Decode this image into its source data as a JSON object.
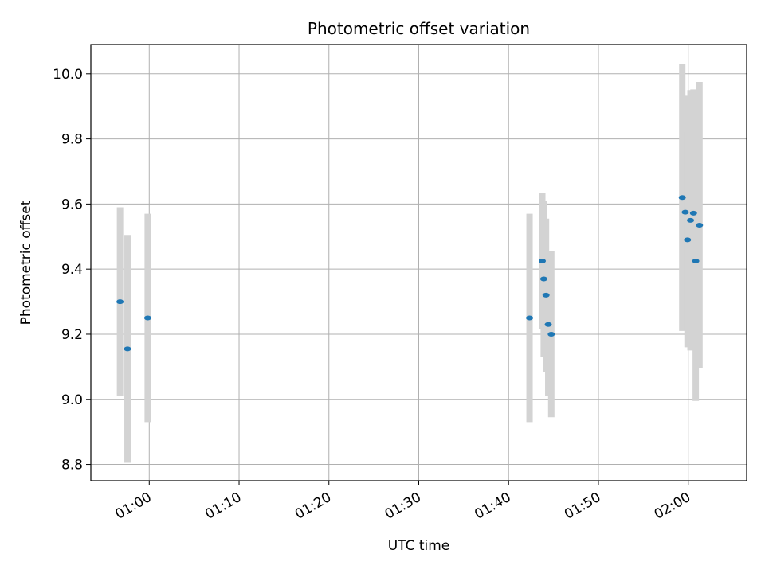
{
  "chart_data": {
    "type": "scatter",
    "title": "Photometric offset variation",
    "xlabel": "UTC time",
    "ylabel": "Photometric offset",
    "x_ticks": [
      "01:00",
      "01:10",
      "01:20",
      "01:30",
      "01:40",
      "01:50",
      "02:00"
    ],
    "y_ticks": [
      "8.8",
      "9.0",
      "9.2",
      "9.4",
      "9.6",
      "9.8",
      "10.0"
    ],
    "xlim": [
      "00:53:30",
      "02:06:30"
    ],
    "ylim": [
      8.75,
      10.09
    ],
    "grid": true,
    "colors": {
      "points": "#1f77b4",
      "errorbars": "#d3d3d3",
      "grid": "#b0b0b0"
    },
    "series": [
      {
        "points": [
          {
            "x": "00:56:45",
            "y": 9.3,
            "yerr": 0.29
          },
          {
            "x": "00:57:35",
            "y": 9.155,
            "yerr": 0.35
          },
          {
            "x": "00:59:50",
            "y": 9.25,
            "yerr": 0.32
          },
          {
            "x": "01:42:20",
            "y": 9.25,
            "yerr": 0.32
          },
          {
            "x": "01:43:45",
            "y": 9.425,
            "yerr": 0.21
          },
          {
            "x": "01:43:55",
            "y": 9.37,
            "yerr": 0.24
          },
          {
            "x": "01:44:10",
            "y": 9.32,
            "yerr": 0.235
          },
          {
            "x": "01:44:25",
            "y": 9.23,
            "yerr": 0.22
          },
          {
            "x": "01:44:45",
            "y": 9.2,
            "yerr": 0.255
          },
          {
            "x": "01:59:20",
            "y": 9.62,
            "yerr": 0.41
          },
          {
            "x": "01:59:40",
            "y": 9.575,
            "yerr": 0.36
          },
          {
            "x": "01:59:55",
            "y": 9.49,
            "yerr": 0.33
          },
          {
            "x": "02:00:15",
            "y": 9.55,
            "yerr": 0.4
          },
          {
            "x": "02:00:35",
            "y": 9.572,
            "yerr": 0.38
          },
          {
            "x": "02:00:50",
            "y": 9.425,
            "yerr": 0.43
          },
          {
            "x": "02:01:15",
            "y": 9.535,
            "yerr": 0.44
          }
        ]
      }
    ]
  }
}
